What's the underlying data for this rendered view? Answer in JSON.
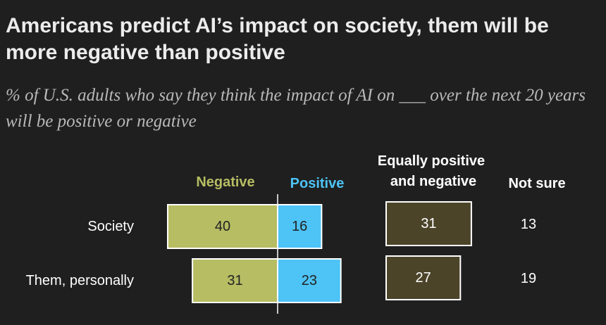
{
  "title": "Americans predict AI’s impact on society, them will be more negative than positive",
  "subtitle": "% of U.S. adults who say they think the impact of AI on ___ over the next 20 years will be positive or negative",
  "colors": {
    "background": "#1f1f1f",
    "negative": "#b6bd63",
    "positive": "#4dc3f6",
    "equally": "#4b4429",
    "text": "#ffffff",
    "subtitle": "#b9b9b9"
  },
  "chart_data": {
    "type": "bar",
    "orientation": "horizontal",
    "layout": "diverging",
    "categories": [
      "Society",
      "Them, personally"
    ],
    "columns": {
      "negative": "Negative",
      "positive": "Positive",
      "equally": [
        "Equally positive",
        "and negative"
      ],
      "not_sure": "Not sure"
    },
    "series": [
      {
        "name": "Negative",
        "values": [
          40,
          31
        ]
      },
      {
        "name": "Positive",
        "values": [
          16,
          23
        ]
      },
      {
        "name": "Equally positive and negative",
        "values": [
          31,
          27
        ]
      },
      {
        "name": "Not sure",
        "values": [
          13,
          19
        ]
      }
    ]
  }
}
